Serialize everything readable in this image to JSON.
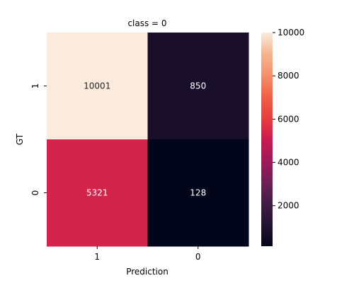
{
  "chart_data": {
    "type": "heatmap",
    "title": "class = 0",
    "xlabel": "Prediction",
    "ylabel": "GT",
    "x_categories": [
      "1",
      "0"
    ],
    "y_categories": [
      "1",
      "0"
    ],
    "values": [
      [
        10001,
        850
      ],
      [
        5321,
        128
      ]
    ],
    "colorbar": {
      "min": 128,
      "max": 10001,
      "ticks": [
        2000,
        4000,
        6000,
        8000,
        10000
      ],
      "colormap": "rocket"
    }
  }
}
